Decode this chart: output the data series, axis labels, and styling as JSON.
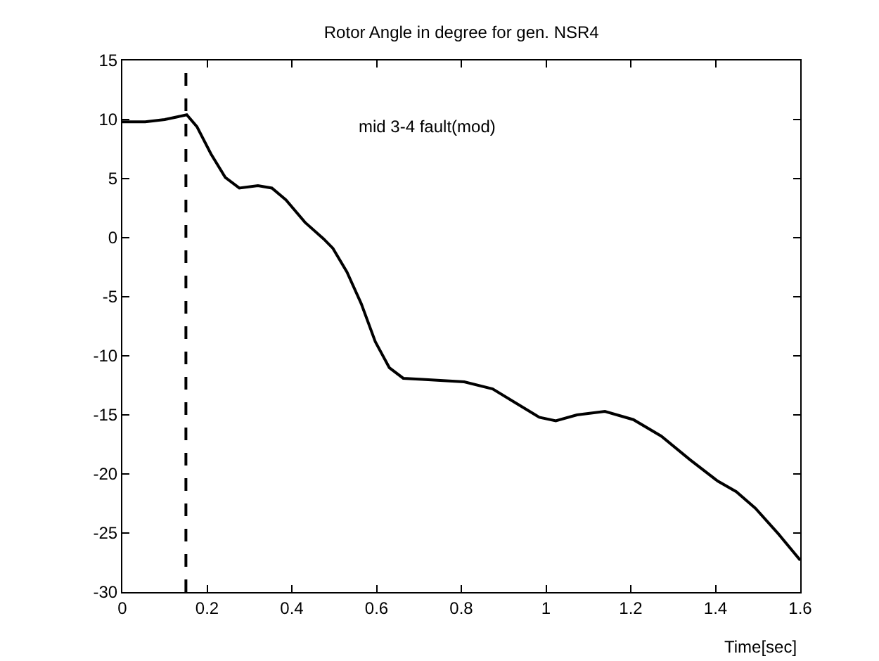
{
  "chart_data": {
    "type": "line",
    "title": "Rotor Angle in degree for gen. NSR4",
    "xlabel": "Time[sec]",
    "x": [
      0,
      0.054,
      0.1,
      0.152,
      0.176,
      0.209,
      0.243,
      0.276,
      0.32,
      0.353,
      0.386,
      0.431,
      0.475,
      0.497,
      0.53,
      0.564,
      0.597,
      0.63,
      0.663,
      0.708,
      0.807,
      0.874,
      0.929,
      0.984,
      1.023,
      1.073,
      1.139,
      1.206,
      1.272,
      1.34,
      1.405,
      1.449,
      1.494,
      1.549,
      1.6
    ],
    "series": [
      {
        "color": "#000000",
        "values": [
          9.8,
          9.8,
          10,
          10.4,
          9.4,
          7.1,
          5.1,
          4.2,
          4.4,
          4.2,
          3.2,
          1.3,
          -0.1,
          -0.9,
          -2.9,
          -5.6,
          -8.8,
          -11,
          -11.9,
          -12,
          -12.2,
          -12.8,
          -14,
          -15.2,
          -15.5,
          -15,
          -14.7,
          -15.4,
          -16.8,
          -18.8,
          -20.6,
          -21.5,
          -22.9,
          -25.1,
          -27.3
        ]
      }
    ],
    "xlim": [
      0,
      1.6
    ],
    "xticks": [
      0,
      0.2,
      0.4,
      0.6,
      0.8,
      1,
      1.2,
      1.4,
      1.6
    ],
    "ylim": [
      -30,
      15
    ],
    "yticks": [
      -30,
      -25,
      -20,
      -15,
      -10,
      -5,
      0,
      5,
      10,
      15
    ],
    "ref_lines": [
      {
        "axis": "x",
        "value": 0.15,
        "color": "#000000",
        "line_style": "dashed"
      }
    ],
    "annotations": [
      "mid 3-4 fault(mod)"
    ],
    "grid": false,
    "marker": "none",
    "line_style": "solid"
  }
}
